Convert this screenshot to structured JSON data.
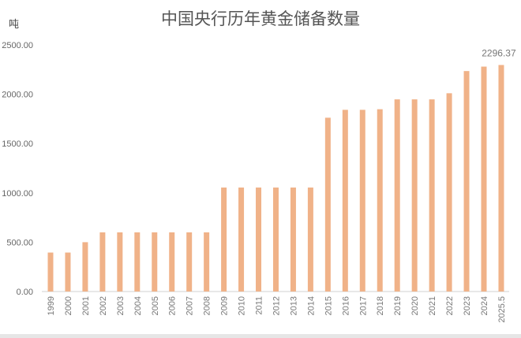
{
  "chart_data": {
    "type": "bar",
    "title": "中国央行历年黄金储备数量",
    "ylabel": "吨",
    "xlabel": "",
    "ylim": [
      0,
      2500
    ],
    "yticks": [
      "0.00",
      "500.00",
      "1000.00",
      "1500.00",
      "2000.00",
      "2500.00"
    ],
    "grid": false,
    "bar_color": "#F0B288",
    "categories": [
      "1999",
      "2000",
      "2001",
      "2002",
      "2003",
      "2004",
      "2005",
      "2006",
      "2007",
      "2008",
      "2009",
      "2010",
      "2011",
      "2012",
      "2013",
      "2014",
      "2015",
      "2016",
      "2017",
      "2018",
      "2019",
      "2020",
      "2021",
      "2022",
      "2023",
      "2024",
      "2025.5"
    ],
    "values": [
      395,
      395,
      500,
      600,
      600,
      600,
      600,
      600,
      600,
      600,
      1054,
      1054,
      1054,
      1054,
      1054,
      1054,
      1762,
      1842,
      1842,
      1848,
      1948,
      1948,
      1948,
      2010,
      2235,
      2280,
      2296.37
    ],
    "data_labels": [
      {
        "category": "2025.5",
        "text": "2296.37"
      }
    ]
  }
}
